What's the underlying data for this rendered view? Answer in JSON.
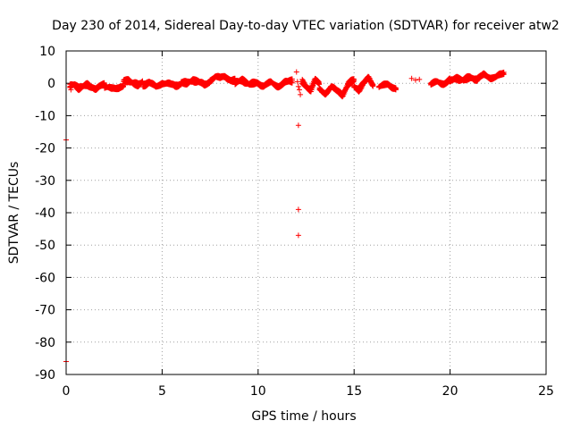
{
  "chart_data": {
    "type": "scatter",
    "title": "Day 230 of 2014, Sidereal Day-to-day VTEC variation (SDTVAR) for receiver atw2",
    "xlabel": "GPS time / hours",
    "ylabel": "SDTVAR / TECUs",
    "xlim": [
      0,
      25
    ],
    "ylim": [
      -90,
      10
    ],
    "xticks": [
      0,
      5,
      10,
      15,
      20,
      25
    ],
    "yticks": [
      10,
      0,
      -10,
      -20,
      -30,
      -40,
      -50,
      -60,
      -70,
      -80,
      -90
    ],
    "grid": true,
    "marker": "+",
    "color": "#ff0000",
    "series": [
      {
        "name": "SDTVAR",
        "data_ranges": [
          {
            "x_start": 0.2,
            "x_end": 2.0,
            "y_values": [
              -1,
              -0.5,
              -1.5,
              -1,
              -0.5,
              -1,
              -1.5,
              -1,
              -0.5
            ]
          },
          {
            "x_start": 2.0,
            "x_end": 3.0,
            "y_values": [
              -1.5,
              -1,
              -1.2,
              -1.8,
              -1
            ]
          },
          {
            "x_start": 3.0,
            "x_end": 4.0,
            "y_values": [
              0.5,
              1,
              0,
              -0.5,
              0.8
            ]
          },
          {
            "x_start": 4.0,
            "x_end": 6.0,
            "y_values": [
              -0.5,
              0,
              -1,
              0.2,
              -0.3,
              -0.8,
              0
            ]
          },
          {
            "x_start": 6.0,
            "x_end": 7.5,
            "y_values": [
              0.5,
              0,
              1,
              0.3,
              -0.5,
              0.8
            ]
          },
          {
            "x_start": 7.5,
            "x_end": 8.8,
            "y_values": [
              1,
              2,
              1.5,
              2.2,
              1.2,
              0.8
            ]
          },
          {
            "x_start": 8.8,
            "x_end": 11.8,
            "y_values": [
              0,
              1,
              -0.5,
              0.5,
              -1,
              0.3,
              -0.8,
              0.2,
              0.8
            ]
          },
          {
            "x_start": 12.3,
            "x_end": 13.2,
            "y_values": [
              0.5,
              -1,
              -2,
              1,
              -0.5
            ]
          },
          {
            "x_start": 13.2,
            "x_end": 15.0,
            "y_values": [
              -2,
              -3,
              -1,
              -2.5,
              -3.5,
              0,
              1
            ]
          },
          {
            "x_start": 15.0,
            "x_end": 16.0,
            "y_values": [
              -1,
              -2,
              0,
              1.5,
              -0.5
            ]
          },
          {
            "x_start": 16.3,
            "x_end": 17.2,
            "y_values": [
              -1,
              -0.5,
              -1.5
            ]
          },
          {
            "x_start": 19.0,
            "x_end": 20.0,
            "y_values": [
              -0.5,
              0.5,
              0,
              1
            ]
          },
          {
            "x_start": 20.0,
            "x_end": 22.8,
            "y_values": [
              0.5,
              1.5,
              1,
              2,
              1.2,
              2.5,
              1.8,
              2.2,
              2.8
            ]
          }
        ],
        "points": [
          {
            "x": 0.0,
            "y": -17.5
          },
          {
            "x": 0.0,
            "y": -86
          },
          {
            "x": 0.25,
            "y": -2
          },
          {
            "x": 12.0,
            "y": 3.5
          },
          {
            "x": 12.05,
            "y": 0.5
          },
          {
            "x": 12.1,
            "y": -1
          },
          {
            "x": 12.15,
            "y": -2
          },
          {
            "x": 12.2,
            "y": -3.5
          },
          {
            "x": 12.1,
            "y": -13
          },
          {
            "x": 12.1,
            "y": -39
          },
          {
            "x": 12.1,
            "y": -47
          },
          {
            "x": 18.0,
            "y": 1.5
          },
          {
            "x": 18.2,
            "y": 1.0
          },
          {
            "x": 18.4,
            "y": 1.2
          }
        ]
      }
    ]
  }
}
